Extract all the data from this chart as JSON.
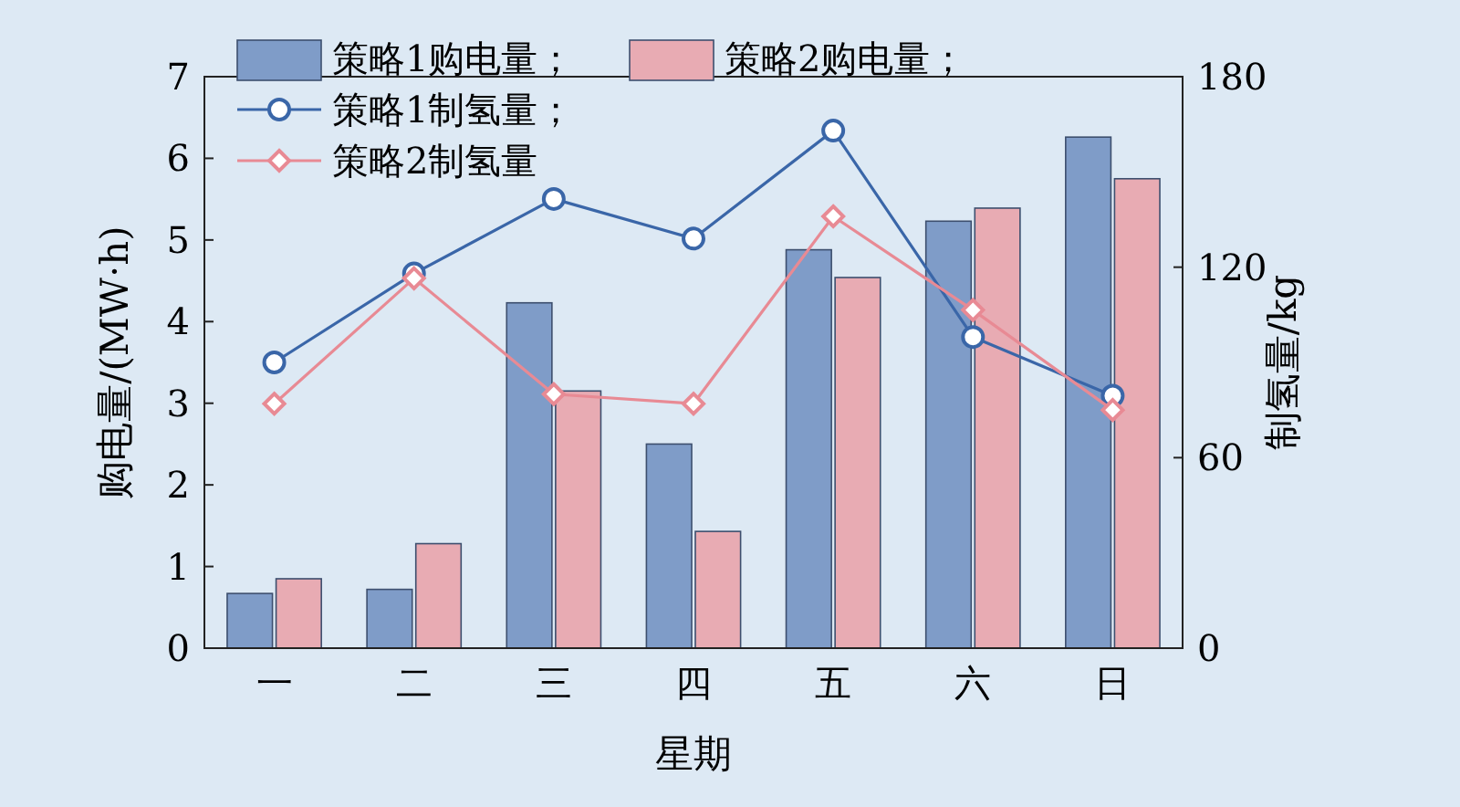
{
  "chart_data": {
    "type": "bar",
    "xlabel": "星期",
    "ylabel": "购电量/(MW·h)",
    "y2label": "制氢量/kg",
    "categories": [
      "一",
      "二",
      "三",
      "四",
      "五",
      "六",
      "日"
    ],
    "series": [
      {
        "name": "策略1购电量；",
        "color": "#7f9cc8",
        "values": [
          0.67,
          0.72,
          4.23,
          2.5,
          4.88,
          5.23,
          6.26
        ]
      },
      {
        "name": "策略2购电量；",
        "color": "#e8abb3",
        "values": [
          0.85,
          1.28,
          3.15,
          1.43,
          4.54,
          5.39,
          5.75
        ]
      },
      {
        "name": "策略1制氢量；",
        "type": "line",
        "axis": "y2",
        "marker": "circle",
        "color": "#3a66a8",
        "values": [
          90,
          118,
          141.5,
          129,
          163,
          98,
          79.5
        ]
      },
      {
        "name": "策略2制氢量",
        "type": "line",
        "axis": "y2",
        "marker": "diamond",
        "color": "#e88a94",
        "values": [
          77,
          116.5,
          80,
          77,
          136,
          106.5,
          75
        ]
      }
    ],
    "ylim": [
      0,
      7
    ],
    "yticks": [
      0,
      1,
      2,
      3,
      4,
      5,
      6,
      7
    ],
    "y2lim": [
      0,
      180
    ],
    "y2ticks": [
      0,
      60,
      120,
      180
    ],
    "grid": false,
    "legend": "top left"
  }
}
